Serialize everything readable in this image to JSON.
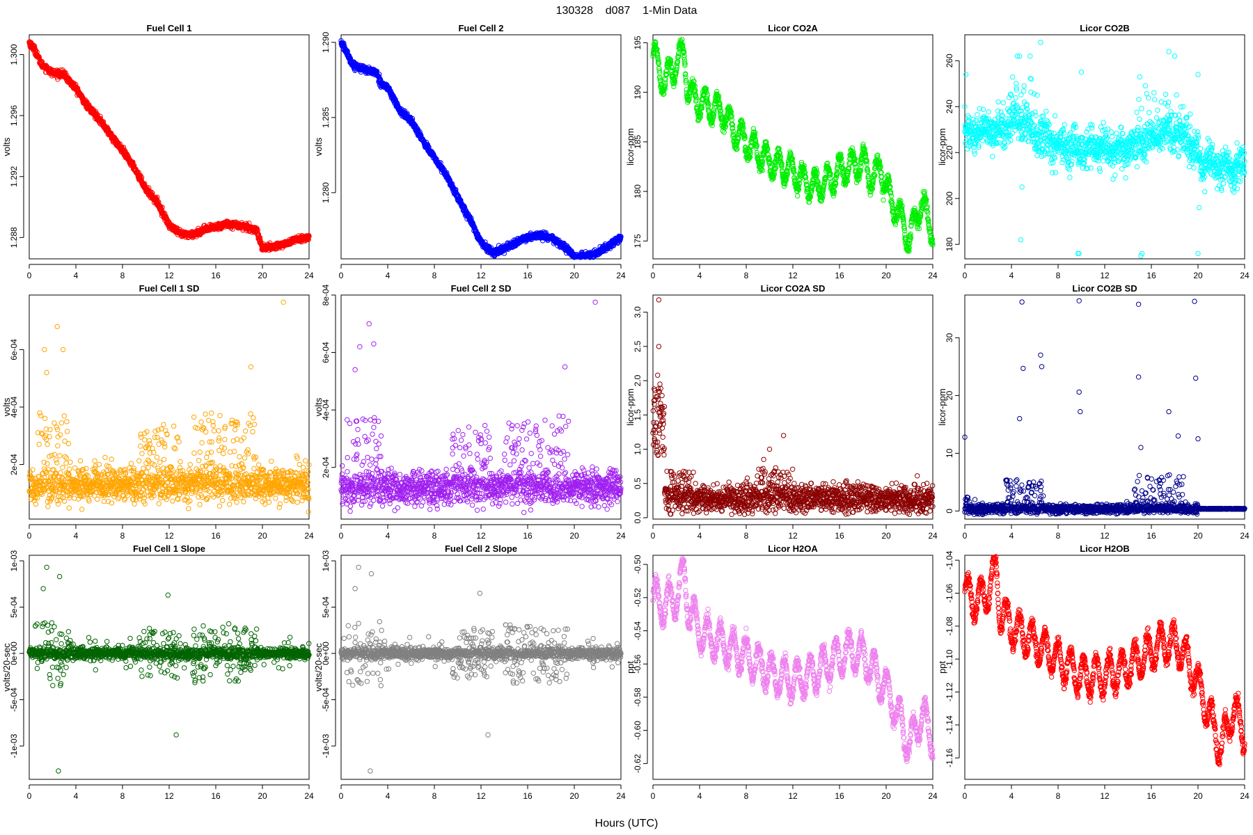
{
  "figure": {
    "title": "130328    d087    1-Min Data",
    "xlabel": "Hours (UTC)"
  },
  "chart_data": [
    {
      "type": "scatter",
      "title": "Fuel Cell 1",
      "ylabel": "volts",
      "color": "#ff0000",
      "pattern": "ramp",
      "xlim": [
        0,
        24
      ],
      "ylim": [
        1.2866,
        1.3013
      ],
      "xticks": [
        0,
        4,
        8,
        12,
        16,
        20,
        24
      ],
      "yticks": [
        1.288,
        1.292,
        1.296,
        1.3
      ],
      "ytick_labels": [
        "1.288",
        "1.292",
        "1.296",
        "1.300"
      ],
      "x": [
        0,
        0.5,
        1,
        2,
        3,
        3.5,
        4,
        5,
        6,
        7,
        8,
        9,
        10,
        11,
        12,
        13,
        14,
        15,
        16,
        17,
        18,
        19.5,
        20,
        21,
        22,
        23,
        24
      ],
      "y": [
        1.3008,
        1.3003,
        1.2994,
        1.2988,
        1.2987,
        1.2982,
        1.2978,
        1.2966,
        1.2958,
        1.2947,
        1.2937,
        1.2926,
        1.2912,
        1.2903,
        1.2888,
        1.2882,
        1.2882,
        1.2885,
        1.2887,
        1.2889,
        1.2888,
        1.2885,
        1.2873,
        1.2874,
        1.2876,
        1.2879,
        1.288
      ],
      "noise": 0.0003
    },
    {
      "type": "scatter",
      "title": "Fuel Cell 2",
      "ylabel": "volts",
      "color": "#0000ff",
      "pattern": "ramp",
      "xlim": [
        0,
        24
      ],
      "ylim": [
        1.2756,
        1.2905
      ],
      "xticks": [
        0,
        4,
        8,
        12,
        16,
        20,
        24
      ],
      "yticks": [
        1.28,
        1.285,
        1.29
      ],
      "ytick_labels": [
        "1.280",
        "1.285",
        "1.290"
      ],
      "x": [
        0,
        0.5,
        1,
        2,
        3,
        3.5,
        4,
        5,
        6,
        7,
        8,
        9,
        10,
        11,
        12,
        13,
        14,
        15,
        16,
        17,
        18,
        19.5,
        20,
        21,
        22,
        23,
        24
      ],
      "y": [
        1.29,
        1.2893,
        1.2885,
        1.2882,
        1.288,
        1.2872,
        1.287,
        1.2855,
        1.2848,
        1.2835,
        1.2823,
        1.2812,
        1.2797,
        1.2783,
        1.2767,
        1.276,
        1.2763,
        1.2767,
        1.277,
        1.2772,
        1.277,
        1.2762,
        1.2757,
        1.2758,
        1.276,
        1.2765,
        1.277
      ],
      "noise": 0.0003
    },
    {
      "type": "scatter",
      "title": "Licor CO2A",
      "ylabel": "licor-ppm",
      "color": "#00ee00",
      "pattern": "wave",
      "xlim": [
        0,
        24
      ],
      "ylim": [
        173.2,
        195.8
      ],
      "xticks": [
        0,
        4,
        8,
        12,
        16,
        20,
        24
      ],
      "yticks": [
        175,
        180,
        185,
        190,
        195
      ],
      "ytick_labels": [
        "175",
        "180",
        "185",
        "190",
        "195"
      ],
      "x": [
        0,
        1,
        2,
        2.7,
        3,
        4,
        5,
        6,
        7,
        8,
        9,
        10,
        11,
        12,
        13,
        14,
        15,
        16,
        17,
        18,
        19,
        19.5,
        20,
        21,
        22,
        23,
        24
      ],
      "y": [
        194,
        191,
        193,
        194,
        190,
        189,
        188.5,
        188,
        186,
        185,
        184,
        183,
        182.5,
        182,
        181,
        180.5,
        181,
        182,
        182.5,
        183,
        181,
        183,
        180,
        178,
        175,
        179,
        176
      ],
      "amp": 1.4,
      "period": 1.05,
      "noise": 0.3
    },
    {
      "type": "scatter",
      "title": "Licor CO2B",
      "ylabel": "licor-ppm",
      "color": "#00ffff",
      "pattern": "wave",
      "xlim": [
        0,
        24
      ],
      "ylim": [
        173.7,
        271.3
      ],
      "xticks": [
        0,
        4,
        8,
        12,
        16,
        20,
        24
      ],
      "yticks": [
        180,
        200,
        220,
        240,
        260
      ],
      "ytick_labels": [
        "180",
        "200",
        "220",
        "240",
        "260"
      ],
      "x": [
        0,
        1,
        2,
        3,
        4,
        5,
        6,
        7,
        8,
        9,
        10,
        11,
        12,
        13,
        14,
        15,
        16,
        17,
        18,
        19,
        20,
        21,
        22,
        23,
        24
      ],
      "y": [
        227,
        228,
        229,
        230,
        233,
        232,
        228,
        225,
        223,
        222,
        221,
        222,
        222,
        221,
        222,
        224,
        226,
        228,
        229,
        226,
        218,
        215,
        213,
        213,
        214
      ],
      "amp": 2,
      "period": 1.3,
      "noise": 4,
      "outliers": {
        "x": [
          0,
          0.1,
          4.5,
          4.7,
          4.8,
          5.6,
          5.7,
          6.5,
          9.7,
          9.8,
          10,
          15,
          15.1,
          15.2,
          20,
          20,
          20.1,
          3.8,
          6.2,
          17.5,
          18,
          4.9
        ],
        "y": [
          240,
          254,
          262,
          262,
          182,
          262,
          252,
          268,
          176,
          176,
          255,
          253,
          175,
          176,
          254,
          176,
          196,
          244,
          245,
          264,
          262,
          205
        ]
      },
      "spikes": {
        "centers": [
          4.5,
          6.4,
          16,
          18.2
        ],
        "width": 1.2,
        "amp": 12
      }
    },
    {
      "type": "scatter",
      "title": "Fuel Cell 1 SD",
      "ylabel": "volts",
      "color": "#ffa500",
      "pattern": "sd",
      "xlim": [
        0,
        24
      ],
      "ylim": [
        1e-05,
        0.00079
      ],
      "xticks": [
        0,
        4,
        8,
        12,
        16,
        20,
        24
      ],
      "yticks": [
        0.0002,
        0.0004,
        0.0006
      ],
      "ytick_labels": [
        "2e-04",
        "4e-04",
        "6e-04"
      ],
      "base": 0.00013,
      "spread": 3e-05,
      "bursts": [
        {
          "from": 0.5,
          "to": 3.5,
          "amp": 0.00025
        },
        {
          "from": 9.5,
          "to": 13,
          "amp": 0.00022
        },
        {
          "from": 14,
          "to": 19.5,
          "amp": 0.00025
        }
      ],
      "outliers": {
        "x": [
          21.8,
          2.4,
          1.3,
          2.9,
          1.5,
          19
        ],
        "y": [
          0.000765,
          0.00068,
          0.0006,
          0.0006,
          0.00052,
          0.00054
        ]
      }
    },
    {
      "type": "scatter",
      "title": "Fuel Cell 2 SD",
      "ylabel": "volts",
      "color": "#a020f0",
      "pattern": "sd",
      "xlim": [
        0,
        24
      ],
      "ylim": [
        2e-05,
        0.0008
      ],
      "xticks": [
        0,
        4,
        8,
        12,
        16,
        20,
        24
      ],
      "yticks": [
        0.0002,
        0.0004,
        0.0006,
        0.0008
      ],
      "ytick_labels": [
        "2e-04",
        "4e-04",
        "6e-04",
        "8e-04"
      ],
      "base": 0.00013,
      "spread": 3e-05,
      "bursts": [
        {
          "from": 0.5,
          "to": 3.5,
          "amp": 0.00025
        },
        {
          "from": 9.5,
          "to": 13,
          "amp": 0.00022
        },
        {
          "from": 14,
          "to": 19.5,
          "amp": 0.00025
        }
      ],
      "outliers": {
        "x": [
          21.8,
          2.4,
          1.6,
          2.8,
          1.2,
          19.2
        ],
        "y": [
          0.000775,
          0.0007,
          0.00062,
          0.00063,
          0.00054,
          0.00055
        ]
      }
    },
    {
      "type": "scatter",
      "title": "Licor CO2A SD",
      "ylabel": "licor-ppm",
      "color": "#8b0000",
      "pattern": "sdco2a",
      "xlim": [
        0,
        24
      ],
      "ylim": [
        -0.02,
        3.25
      ],
      "xticks": [
        0,
        4,
        8,
        12,
        16,
        20,
        24
      ],
      "yticks": [
        0,
        0.5,
        1,
        1.5,
        2,
        2.5,
        3
      ],
      "ytick_labels": [
        "0.0",
        "0.5",
        "1.0",
        "1.5",
        "2.0",
        "2.5",
        "3.0"
      ],
      "base": 0.28,
      "spread": 0.1,
      "bursts": [
        {
          "from": 0,
          "to": 1,
          "amp": 1.1
        },
        {
          "from": 1,
          "to": 3.5,
          "amp": 0.4
        },
        {
          "from": 8.5,
          "to": 12,
          "amp": 0.45
        }
      ],
      "outliers": {
        "x": [
          0.5,
          0.5,
          0.4,
          0.6,
          11.2,
          10,
          9.5
        ],
        "y": [
          3.18,
          2.5,
          2.08,
          1.95,
          1.2,
          1.0,
          0.85
        ]
      }
    },
    {
      "type": "scatter",
      "title": "Licor CO2B SD",
      "ylabel": "licor-ppm",
      "color": "#00008b",
      "pattern": "sdco2b",
      "xlim": [
        0,
        24
      ],
      "ylim": [
        -1.4,
        37.4
      ],
      "xticks": [
        0,
        4,
        8,
        12,
        16,
        20,
        24
      ],
      "yticks": [
        0,
        10,
        20,
        30
      ],
      "ytick_labels": [
        "0",
        "10",
        "20",
        "30"
      ],
      "base": 0.4,
      "spread": 0.4,
      "bursts": [
        {
          "from": 0,
          "to": 1,
          "amp": 2
        },
        {
          "from": 3.5,
          "to": 6.8,
          "amp": 5
        },
        {
          "from": 14.5,
          "to": 19,
          "amp": 6
        }
      ],
      "outliers": {
        "x": [
          4.9,
          9.8,
          14.9,
          19.7,
          6.5,
          6.6,
          9.8,
          5,
          9.9,
          14.9,
          19.8,
          0,
          4.7,
          15.1,
          20,
          17.5,
          18.3
        ],
        "y": [
          36.2,
          36.4,
          35.8,
          36.3,
          27,
          25,
          20.6,
          24.7,
          17.2,
          23.2,
          23,
          12.8,
          16,
          11,
          12.5,
          17.2,
          13
        ]
      }
    },
    {
      "type": "scatter",
      "title": "Fuel Cell 1 Slope",
      "ylabel": "volts/20-sec",
      "color": "#006400",
      "pattern": "slope",
      "xlim": [
        0,
        24
      ],
      "ylim": [
        -0.00136,
        0.00106
      ],
      "xticks": [
        0,
        4,
        8,
        12,
        16,
        20,
        24
      ],
      "yticks": [
        -0.001,
        -0.0005,
        0,
        0.0005,
        0.001
      ],
      "ytick_labels": [
        "-1e-03",
        "-5e-04",
        "0e+00",
        "5e-04",
        "1e-03"
      ],
      "spread": 3e-05,
      "bursts": [
        {
          "from": 0.5,
          "to": 3.5,
          "amp": 0.00035
        },
        {
          "from": 9.5,
          "to": 13,
          "amp": 0.00028
        },
        {
          "from": 14,
          "to": 19.5,
          "amp": 0.00032
        }
      ],
      "outliers": {
        "x": [
          1.5,
          2.6,
          12.6,
          2.5,
          1.2,
          11.9
        ],
        "y": [
          0.00093,
          0.00083,
          -0.00088,
          -0.00127,
          0.0007,
          0.00063
        ]
      }
    },
    {
      "type": "scatter",
      "title": "Fuel Cell 2 Slope",
      "ylabel": "volts/20-sec",
      "color": "#808080",
      "pattern": "slope",
      "xlim": [
        0,
        24
      ],
      "ylim": [
        -0.00136,
        0.00106
      ],
      "xticks": [
        0,
        4,
        8,
        12,
        16,
        20,
        24
      ],
      "yticks": [
        -0.001,
        -0.0005,
        0,
        0.0005,
        0.001
      ],
      "ytick_labels": [
        "-1e-03",
        "-5e-04",
        "0e+00",
        "5e-04",
        "1e-03"
      ],
      "spread": 3e-05,
      "bursts": [
        {
          "from": 0.5,
          "to": 3.5,
          "amp": 0.00035
        },
        {
          "from": 9.5,
          "to": 13,
          "amp": 0.00028
        },
        {
          "from": 14,
          "to": 19.5,
          "amp": 0.00032
        }
      ],
      "outliers": {
        "x": [
          1.5,
          2.6,
          12.6,
          2.5,
          1.2,
          11.9
        ],
        "y": [
          0.00093,
          0.00086,
          -0.00088,
          -0.00127,
          0.0007,
          0.00065
        ]
      }
    },
    {
      "type": "scatter",
      "title": "Licor H2OA",
      "ylabel": "ppt",
      "color": "#ee82ee",
      "pattern": "wave",
      "xlim": [
        0,
        24
      ],
      "ylim": [
        -0.6295,
        -0.4945
      ],
      "xticks": [
        0,
        4,
        8,
        12,
        16,
        20,
        24
      ],
      "yticks": [
        -0.62,
        -0.6,
        -0.58,
        -0.56,
        -0.54,
        -0.52,
        -0.5
      ],
      "ytick_labels": [
        "-0.62",
        "-0.60",
        "-0.58",
        "-0.56",
        "-0.54",
        "-0.52",
        "-0.50"
      ],
      "x": [
        0,
        1,
        2,
        2.7,
        3,
        4,
        5,
        6,
        7,
        8,
        9,
        10,
        11,
        12,
        13,
        14,
        15,
        16,
        17,
        18,
        19,
        20,
        21,
        22,
        23,
        24
      ],
      "y": [
        -0.52,
        -0.525,
        -0.52,
        -0.505,
        -0.525,
        -0.54,
        -0.545,
        -0.548,
        -0.552,
        -0.555,
        -0.56,
        -0.565,
        -0.568,
        -0.57,
        -0.568,
        -0.565,
        -0.56,
        -0.555,
        -0.552,
        -0.555,
        -0.565,
        -0.575,
        -0.59,
        -0.61,
        -0.59,
        -0.605
      ],
      "amp": 0.011,
      "period": 1.1,
      "noise": 0.002
    },
    {
      "type": "scatter",
      "title": "Licor H2OB",
      "ylabel": "ppt",
      "color": "#ff0000",
      "pattern": "wave",
      "xlim": [
        0,
        24
      ],
      "ylim": [
        -1.173,
        -1.037
      ],
      "xticks": [
        0,
        4,
        8,
        12,
        16,
        20,
        24
      ],
      "yticks": [
        -1.16,
        -1.14,
        -1.12,
        -1.1,
        -1.08,
        -1.06,
        -1.04
      ],
      "ytick_labels": [
        "-1.16",
        "-1.14",
        "-1.12",
        "-1.10",
        "-1.08",
        "-1.06",
        "-1.04"
      ],
      "x": [
        0,
        1,
        2,
        2.7,
        3,
        4,
        5,
        6,
        7,
        8,
        9,
        10,
        11,
        12,
        13,
        14,
        15,
        16,
        17,
        18,
        19,
        20,
        21,
        22,
        23,
        24
      ],
      "y": [
        -1.06,
        -1.065,
        -1.06,
        -1.045,
        -1.07,
        -1.08,
        -1.085,
        -1.09,
        -1.095,
        -1.1,
        -1.105,
        -1.11,
        -1.11,
        -1.11,
        -1.108,
        -1.105,
        -1.1,
        -1.095,
        -1.09,
        -1.09,
        -1.1,
        -1.115,
        -1.135,
        -1.155,
        -1.13,
        -1.145
      ],
      "amp": 0.011,
      "period": 1.1,
      "noise": 0.002
    }
  ]
}
